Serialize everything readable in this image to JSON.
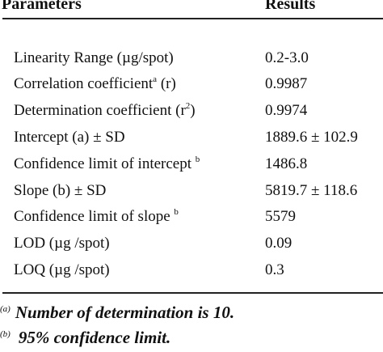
{
  "table": {
    "headers": {
      "parameters": "Parameters",
      "results": "Results"
    },
    "rows": [
      {
        "param": "Linearity Range (µg/spot)",
        "param_sup": "",
        "param_suffix": "",
        "value": "0.2-3.0"
      },
      {
        "param": "Correlation coefficient",
        "param_sup": "a",
        "param_suffix": " (r)",
        "value": "0.9987"
      },
      {
        "param": "Determination coefficient (r",
        "param_sup": "2",
        "param_suffix": ")",
        "value": "0.9974"
      },
      {
        "param": "Intercept (a) ± SD",
        "param_sup": "",
        "param_suffix": "",
        "value": "1889.6 ± 102.9"
      },
      {
        "param": "Confidence limit of intercept ",
        "param_sup": "b",
        "param_suffix": "",
        "value": "1486.8"
      },
      {
        "param": "Slope (b) ± SD",
        "param_sup": "",
        "param_suffix": "",
        "value": "5819.7 ± 118.6"
      },
      {
        "param": "Confidence limit of slope ",
        "param_sup": "b",
        "param_suffix": "",
        "value": "5579"
      },
      {
        "param": "LOD (µg /spot)",
        "param_sup": "",
        "param_suffix": "",
        "value": "0.09"
      },
      {
        "param": "LOQ (µg /spot)",
        "param_sup": "",
        "param_suffix": "",
        "value": "0.3"
      }
    ]
  },
  "footnotes": [
    {
      "marker": "(a)",
      "text": "Number of determination is 10."
    },
    {
      "marker": "(b)",
      "text": "95% confidence limit."
    }
  ]
}
